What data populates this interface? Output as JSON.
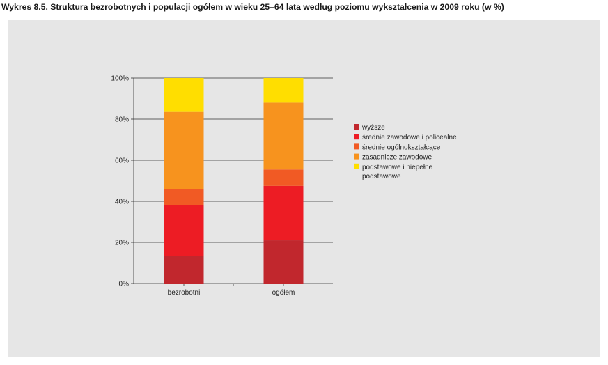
{
  "title": "Wykres 8.5. Struktura bezrobotnych i populacji ogółem w wieku 25–64 lata według poziomu wykształcenia w 2009 roku (w %)",
  "chart_data": {
    "type": "bar",
    "stacked": true,
    "categories": [
      "bezrobotni",
      "ogółem"
    ],
    "series": [
      {
        "name": "wyższe",
        "color": "#c1272d",
        "values": [
          13.5,
          21
        ]
      },
      {
        "name": "średnie zawodowe i policealne",
        "color": "#ed1c24",
        "values": [
          24.5,
          26.5
        ]
      },
      {
        "name": "średnie ogólnokształcące",
        "color": "#f15a24",
        "values": [
          8,
          8
        ]
      },
      {
        "name": "zasadnicze zawodowe",
        "color": "#f7931e",
        "values": [
          37.5,
          32.5
        ]
      },
      {
        "name": "podstawowe i niepełne podstawowe",
        "color": "#ffde00",
        "values": [
          16.5,
          12
        ]
      }
    ],
    "yticks": [
      "0%",
      "20%",
      "40%",
      "60%",
      "80%",
      "100%"
    ],
    "ylim": [
      0,
      100
    ],
    "grid": true,
    "legend_position": "right"
  }
}
